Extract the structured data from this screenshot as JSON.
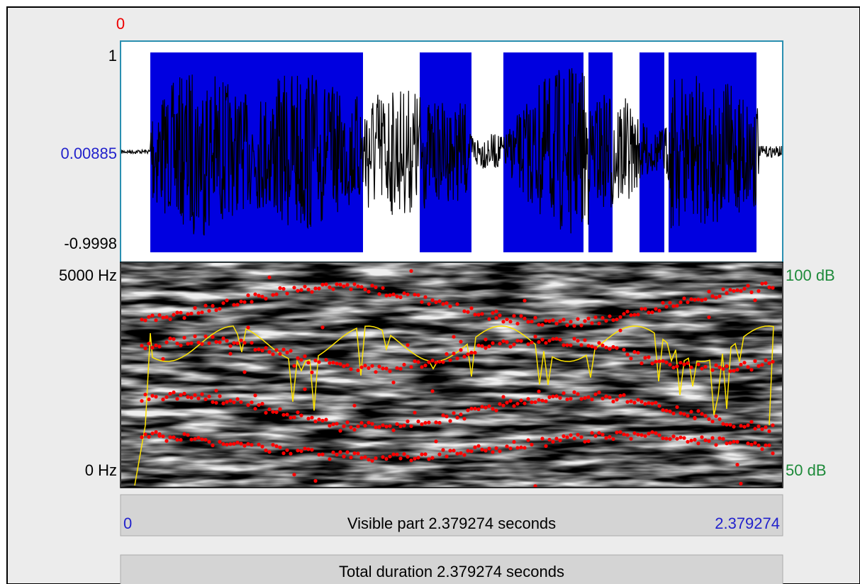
{
  "cursor": {
    "label": "0"
  },
  "waveform": {
    "top_label": "1",
    "mid_label": "0.00885",
    "bottom_label": "-0.9998"
  },
  "spectrogram": {
    "top_left_label": "5000 Hz",
    "bottom_left_label": "0 Hz",
    "top_right_label": "100 dB",
    "bottom_right_label": "50 dB"
  },
  "visible_bar": {
    "start_label": "0",
    "text": "Visible part 2.379274 seconds",
    "end_label": "2.379274"
  },
  "total_bar": {
    "text": "Total duration 2.379274 seconds"
  }
}
